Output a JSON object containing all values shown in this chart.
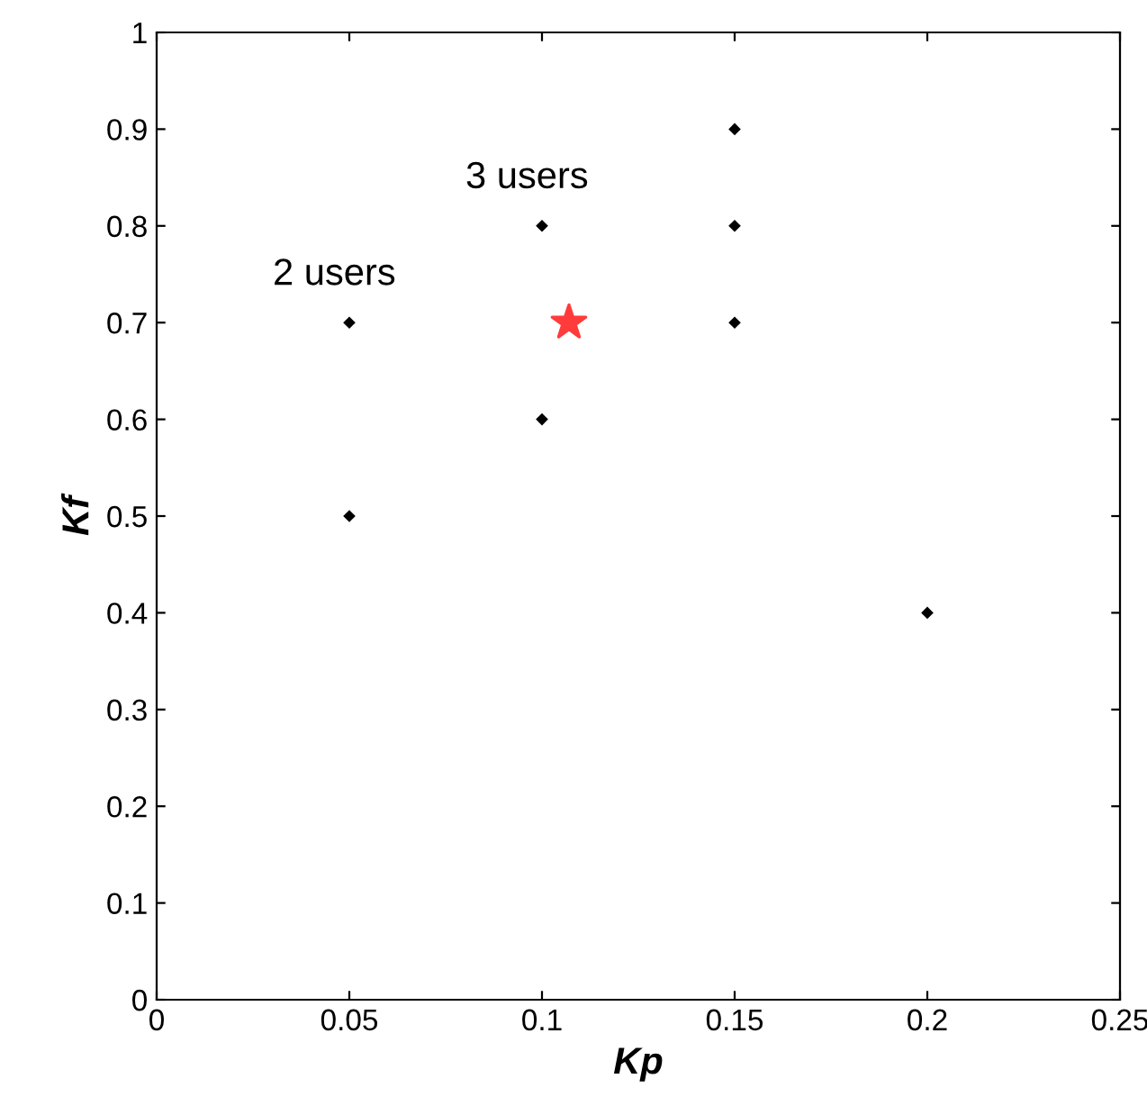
{
  "chart_data": {
    "type": "scatter",
    "xlabel": "Kp",
    "ylabel": "Kf",
    "series": [
      {
        "color": "#000000",
        "marker": "diamond",
        "x": [
          0.05,
          0.05,
          0.1,
          0.1,
          0.15,
          0.15,
          0.15,
          0.2
        ],
        "values": [
          0.7,
          0.5,
          0.8,
          0.6,
          0.9,
          0.8,
          0.7,
          0.4
        ]
      },
      {
        "color": "#ff3b3b",
        "marker": "star",
        "x": [
          0.107
        ],
        "values": [
          0.7
        ]
      }
    ],
    "annotations": [
      {
        "text": "2 users",
        "x": 0.05,
        "y": 0.7
      },
      {
        "text": "3 users",
        "x": 0.1,
        "y": 0.8
      }
    ],
    "xlim": [
      0,
      0.25
    ],
    "xticks": [
      0,
      0.05,
      0.1,
      0.15,
      0.2,
      0.25
    ],
    "ylim": [
      0,
      1
    ],
    "yticks": [
      0,
      0.1,
      0.2,
      0.3,
      0.4,
      0.5,
      0.6,
      0.7,
      0.8,
      0.9,
      1
    ],
    "grid": false,
    "legend": false
  }
}
